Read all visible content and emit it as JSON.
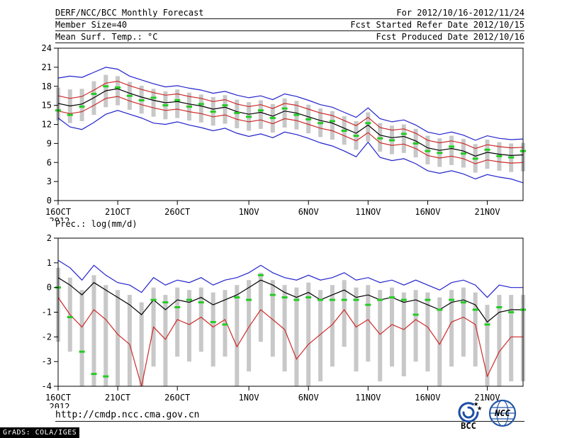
{
  "header": {
    "rows": [
      {
        "left": "DERF/NCC/BCC Monthly Forecast",
        "right": "For 2012/10/16-2012/11/24"
      },
      {
        "left": "Member Size=40",
        "right": "Fcst Started Refer Date 2012/10/15"
      },
      {
        "left": "Mean Surf. Temp.: °C",
        "right": "Fcst Produced Date 2012/10/16"
      }
    ]
  },
  "footer": {
    "url": "http://cmdp.ncc.cma.gov.cn",
    "grads_stamp": "GrADS: COLA/IGES",
    "logos": [
      {
        "label": "BCC"
      },
      {
        "label": "NCC"
      }
    ]
  },
  "chart_data": [
    {
      "name": "surface-temperature",
      "type": "line",
      "title": "Mean Surf. Temp.: °C",
      "ylabel": "°C",
      "ylim": [
        0,
        24
      ],
      "yticks": [
        24,
        21,
        18,
        15,
        12,
        9,
        6,
        3,
        0
      ],
      "grid": false,
      "legend": false,
      "x_count": 40,
      "x_start": "16OCT2012",
      "x_end": "24NOV2012",
      "xticks": [
        {
          "pos": 0,
          "label": "16OCT",
          "sub": "2012"
        },
        {
          "pos": 5,
          "label": "21OCT"
        },
        {
          "pos": 10,
          "label": "26OCT"
        },
        {
          "pos": 16,
          "label": "1NOV"
        },
        {
          "pos": 21,
          "label": "6NOV"
        },
        {
          "pos": 26,
          "label": "11NOV"
        },
        {
          "pos": 31,
          "label": "16NOV"
        },
        {
          "pos": 36,
          "label": "21NOV"
        }
      ],
      "bars": {
        "name": "ensemble-spread",
        "color": "#c8c8c8",
        "high": [
          17.8,
          17.5,
          17.6,
          18.8,
          19.8,
          19.6,
          18.7,
          18.1,
          17.6,
          17.2,
          17.5,
          17.0,
          16.7,
          16.3,
          16.6,
          15.9,
          15.5,
          15.8,
          15.2,
          16.1,
          15.7,
          15.1,
          14.5,
          14.1,
          13.3,
          12.5,
          13.9,
          12.2,
          11.8,
          12.0,
          11.3,
          10.2,
          9.8,
          10.2,
          9.7,
          8.9,
          9.6,
          9.2,
          9.0,
          9.1
        ],
        "low": [
          12.6,
          12.2,
          12.5,
          13.5,
          14.7,
          15.0,
          14.3,
          13.7,
          13.2,
          12.8,
          13.0,
          12.6,
          12.3,
          11.8,
          12.1,
          11.4,
          11.0,
          11.3,
          10.7,
          11.5,
          11.2,
          10.6,
          10.0,
          9.6,
          8.8,
          8.0,
          9.3,
          7.7,
          7.3,
          7.5,
          6.8,
          5.7,
          5.3,
          5.6,
          5.2,
          4.4,
          5.0,
          4.7,
          4.5,
          4.6
        ]
      },
      "series": [
        {
          "name": "ensemble-max",
          "color": "#2323cd",
          "values": [
            19.3,
            19.6,
            19.4,
            20.2,
            21.0,
            20.7,
            19.6,
            19.0,
            18.4,
            17.9,
            18.1,
            17.7,
            17.4,
            16.9,
            17.2,
            16.6,
            16.2,
            16.5,
            15.9,
            16.8,
            16.4,
            15.8,
            15.1,
            14.7,
            13.9,
            13.1,
            14.6,
            12.9,
            12.4,
            12.7,
            11.9,
            10.8,
            10.4,
            10.8,
            10.3,
            9.5,
            10.2,
            9.8,
            9.6,
            9.7
          ]
        },
        {
          "name": "upper-band",
          "color": "#cd2a2a",
          "values": [
            16.5,
            16.1,
            16.4,
            17.4,
            18.5,
            18.8,
            18.1,
            17.5,
            17.0,
            16.6,
            16.8,
            16.4,
            16.1,
            15.6,
            15.9,
            15.2,
            14.8,
            15.1,
            14.5,
            15.3,
            15.0,
            14.4,
            13.8,
            13.4,
            12.6,
            11.8,
            13.1,
            11.5,
            11.1,
            11.3,
            10.6,
            9.5,
            9.1,
            9.4,
            9.0,
            8.2,
            8.8,
            8.5,
            8.3,
            8.4
          ]
        },
        {
          "name": "ensemble-mean",
          "color": "#000000",
          "values": [
            15.3,
            14.9,
            15.2,
            16.2,
            17.3,
            17.6,
            16.9,
            16.3,
            15.8,
            15.4,
            15.6,
            15.2,
            14.9,
            14.4,
            14.7,
            14.0,
            13.6,
            13.9,
            13.3,
            14.1,
            13.8,
            13.2,
            12.6,
            12.2,
            11.4,
            10.6,
            11.9,
            10.3,
            9.9,
            10.1,
            9.4,
            8.3,
            7.9,
            8.2,
            7.8,
            7.0,
            7.6,
            7.3,
            7.1,
            7.2
          ]
        },
        {
          "name": "lower-band",
          "color": "#cd2a2a",
          "values": [
            14.1,
            13.7,
            14.0,
            15.0,
            16.1,
            16.4,
            15.7,
            15.1,
            14.6,
            14.2,
            14.4,
            14.0,
            13.7,
            13.2,
            13.5,
            12.8,
            12.4,
            12.7,
            12.1,
            12.9,
            12.6,
            12.0,
            11.4,
            11.0,
            10.2,
            9.4,
            10.7,
            9.1,
            8.7,
            8.9,
            8.2,
            7.1,
            6.7,
            7.0,
            6.6,
            5.8,
            6.4,
            6.1,
            5.9,
            6.0
          ]
        },
        {
          "name": "ensemble-min",
          "color": "#2323cd",
          "values": [
            13.0,
            11.6,
            11.2,
            12.3,
            13.6,
            14.2,
            13.6,
            13.0,
            12.2,
            12.0,
            12.4,
            11.9,
            11.5,
            11.0,
            11.4,
            10.6,
            10.1,
            10.5,
            9.9,
            10.8,
            10.4,
            9.8,
            9.1,
            8.6,
            7.8,
            6.9,
            9.2,
            6.8,
            6.3,
            6.6,
            5.8,
            4.7,
            4.3,
            4.7,
            4.2,
            3.4,
            4.1,
            3.7,
            3.4,
            2.8
          ]
        }
      ],
      "markers": {
        "name": "observation",
        "color": "#22cc22",
        "values": [
          14.2,
          13.5,
          14.8,
          16.8,
          18.0,
          17.8,
          16.5,
          15.8,
          16.2,
          15.0,
          15.8,
          14.8,
          15.2,
          14.0,
          15.0,
          13.8,
          13.2,
          14.2,
          13.0,
          14.5,
          13.5,
          12.8,
          12.2,
          12.5,
          11.0,
          10.2,
          12.2,
          9.8,
          9.5,
          10.5,
          9.0,
          7.8,
          7.5,
          8.5,
          7.4,
          6.6,
          8.0,
          7.0,
          6.8,
          7.8
        ]
      }
    },
    {
      "name": "precipitation",
      "type": "line",
      "title": "Prec.: log(mm/d)",
      "ylabel": "log(mm/d)",
      "ylim": [
        -4,
        2
      ],
      "yticks": [
        2,
        1,
        0,
        -1,
        -2,
        -3,
        -4
      ],
      "grid": false,
      "legend": false,
      "x_count": 40,
      "x_start": "16OCT2012",
      "x_end": "24NOV2012",
      "xticks": [
        {
          "pos": 0,
          "label": "16OCT",
          "sub": "2012"
        },
        {
          "pos": 5,
          "label": "21OCT"
        },
        {
          "pos": 10,
          "label": "26OCT"
        },
        {
          "pos": 16,
          "label": "1NOV"
        },
        {
          "pos": 21,
          "label": "6NOV"
        },
        {
          "pos": 26,
          "label": "11NOV"
        },
        {
          "pos": 31,
          "label": "16NOV"
        },
        {
          "pos": 36,
          "label": "21NOV"
        }
      ],
      "bars": {
        "name": "ensemble-spread",
        "color": "#c8c8c8",
        "high": [
          0.8,
          0.4,
          -0.1,
          0.5,
          0.1,
          -0.1,
          -0.3,
          -0.6,
          0.0,
          -0.3,
          0.0,
          -0.1,
          0.0,
          -0.2,
          -0.1,
          0.1,
          0.3,
          0.6,
          0.3,
          0.1,
          0.0,
          0.2,
          -0.1,
          0.1,
          0.3,
          0.0,
          0.1,
          -0.1,
          0.0,
          -0.2,
          -0.1,
          -0.2,
          -0.4,
          -0.1,
          0.0,
          -0.2,
          -0.7,
          -0.3,
          -0.3,
          -0.3
        ],
        "low": [
          -2.2,
          -2.6,
          -4.0,
          -4.0,
          -4.0,
          -4.0,
          -4.0,
          -4.0,
          -3.2,
          -4.0,
          -2.8,
          -3.0,
          -2.6,
          -3.2,
          -2.8,
          -4.0,
          -3.4,
          -2.2,
          -2.8,
          -3.4,
          -4.0,
          -4.0,
          -3.8,
          -3.2,
          -2.4,
          -3.4,
          -3.0,
          -3.8,
          -3.2,
          -3.6,
          -3.0,
          -3.4,
          -4.0,
          -3.2,
          -2.8,
          -3.2,
          -4.0,
          -4.0,
          -3.8,
          -3.8
        ]
      },
      "series": [
        {
          "name": "ensemble-max",
          "color": "#2323cd",
          "values": [
            1.1,
            0.8,
            0.3,
            0.9,
            0.5,
            0.2,
            0.1,
            -0.2,
            0.4,
            0.1,
            0.3,
            0.2,
            0.4,
            0.1,
            0.3,
            0.4,
            0.6,
            0.9,
            0.6,
            0.4,
            0.3,
            0.5,
            0.3,
            0.4,
            0.6,
            0.3,
            0.4,
            0.2,
            0.3,
            0.1,
            0.3,
            0.1,
            -0.1,
            0.2,
            0.3,
            0.1,
            -0.4,
            0.1,
            0.0,
            0.0
          ]
        },
        {
          "name": "ensemble-mean",
          "color": "#000000",
          "values": [
            0.4,
            0.1,
            -0.3,
            0.2,
            -0.1,
            -0.4,
            -0.7,
            -1.1,
            -0.5,
            -0.9,
            -0.5,
            -0.6,
            -0.4,
            -0.7,
            -0.5,
            -0.3,
            0.0,
            0.3,
            0.1,
            -0.2,
            -0.4,
            -0.2,
            -0.5,
            -0.3,
            -0.1,
            -0.4,
            -0.3,
            -0.5,
            -0.4,
            -0.6,
            -0.5,
            -0.7,
            -0.9,
            -0.6,
            -0.5,
            -0.7,
            -1.4,
            -1.0,
            -0.9,
            -0.9
          ]
        },
        {
          "name": "ensemble-min",
          "color": "#cd2a2a",
          "values": [
            -0.4,
            -1.1,
            -1.6,
            -0.9,
            -1.3,
            -1.9,
            -2.3,
            -4.0,
            -1.6,
            -2.1,
            -1.3,
            -1.5,
            -1.2,
            -1.6,
            -1.3,
            -2.4,
            -1.6,
            -0.9,
            -1.3,
            -1.7,
            -2.9,
            -2.3,
            -1.9,
            -1.5,
            -0.9,
            -1.6,
            -1.3,
            -1.9,
            -1.5,
            -1.7,
            -1.3,
            -1.6,
            -2.3,
            -1.4,
            -1.2,
            -1.5,
            -3.6,
            -2.6,
            -2.0,
            -2.0
          ]
        }
      ],
      "markers": {
        "name": "observation",
        "color": "#22cc22",
        "values": [
          0.0,
          -1.2,
          -2.6,
          -3.5,
          -3.6,
          null,
          null,
          null,
          -0.5,
          -0.6,
          -0.8,
          -0.5,
          -0.6,
          -1.4,
          -1.5,
          -0.4,
          -0.5,
          0.5,
          -0.3,
          -0.4,
          -0.5,
          -0.4,
          -0.5,
          -0.5,
          -0.5,
          -0.5,
          -0.7,
          -0.5,
          -0.4,
          -0.5,
          -1.1,
          -0.5,
          -0.9,
          -0.5,
          -0.6,
          -0.9,
          -1.5,
          -0.8,
          -1.0,
          -0.9
        ]
      }
    }
  ]
}
